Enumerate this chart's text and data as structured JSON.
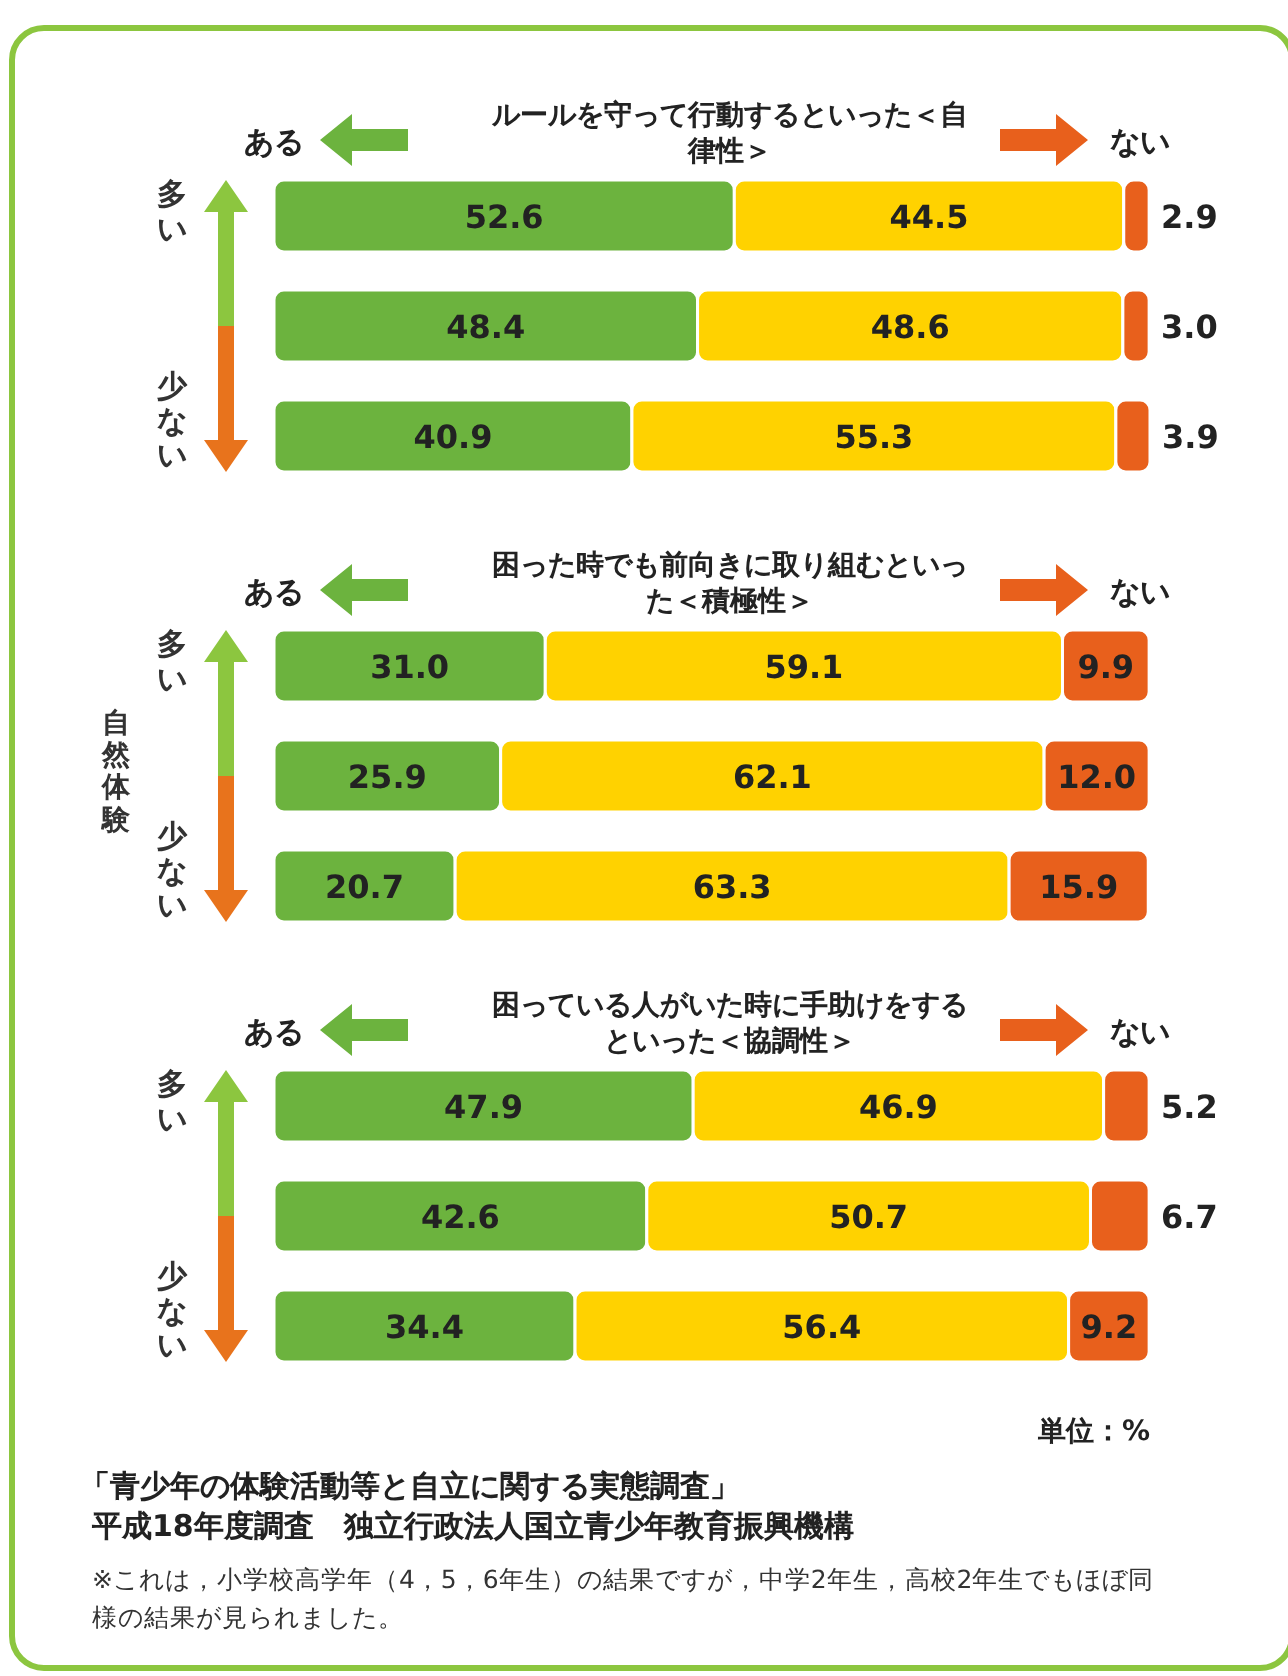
{
  "chart_data": [
    {
      "type": "bar",
      "orientation": "horizontal",
      "stacked": true,
      "title": "ルールを守って行動するといった＜自律性＞",
      "categories": [
        null,
        null,
        null
      ],
      "xlim": [
        0,
        100.1
      ],
      "legend": "top",
      "annotations": [
        "多い",
        "少ない"
      ],
      "series": [
        {
          "name": "ある",
          "color": "#6cb33e",
          "values": [
            52.6,
            48.4,
            40.9
          ],
          "value_labels": [
            "52.6",
            "48.4",
            "40.9"
          ]
        },
        {
          "color": "#ffd200",
          "values": [
            44.5,
            48.6,
            55.3
          ],
          "value_labels": [
            "44.5",
            "48.6",
            "55.3"
          ]
        },
        {
          "name": "ない",
          "color": "#e8601c",
          "values": [
            2.9,
            3.0,
            3.9
          ],
          "value_labels": [
            "2.9",
            "3.0",
            "3.9"
          ]
        }
      ]
    },
    {
      "type": "bar",
      "orientation": "horizontal",
      "stacked": true,
      "title": "困った時でも前向きに取り組むといった＜積極性＞",
      "ylabel": "自然体験",
      "categories": [
        null,
        null,
        null
      ],
      "xlim": [
        0,
        100.1
      ],
      "legend": "top",
      "annotations": [
        "多い",
        "少ない"
      ],
      "series": [
        {
          "name": "ある",
          "color": "#6cb33e",
          "values": [
            31.0,
            25.9,
            20.7
          ],
          "value_labels": [
            "31.0",
            "25.9",
            "20.7"
          ]
        },
        {
          "color": "#ffd200",
          "values": [
            59.1,
            62.1,
            63.3
          ],
          "value_labels": [
            "59.1",
            "62.1",
            "63.3"
          ]
        },
        {
          "name": "ない",
          "color": "#e8601c",
          "values": [
            9.9,
            12.0,
            15.9
          ],
          "value_labels": [
            "9.9",
            "12.0",
            "15.9"
          ]
        }
      ]
    },
    {
      "type": "bar",
      "orientation": "horizontal",
      "stacked": true,
      "title": "困っている人がいた時に手助けをするといった＜協調性＞",
      "categories": [
        null,
        null,
        null
      ],
      "xlim": [
        0,
        100.1
      ],
      "legend": "top",
      "annotations": [
        "多い",
        "少ない",
        "単位：%",
        "「青少年の体験活動等と自立に関する実態調査」",
        "平成18年度調査　独立行政法人国立青少年教育振興機構",
        "※これは，小学校高学年（4，5，6年生）の結果ですが，中学2年生，高校2年生でもほぼ同様の結果が見られました。"
      ],
      "series": [
        {
          "name": "ある",
          "color": "#6cb33e",
          "values": [
            47.9,
            42.6,
            34.4
          ],
          "value_labels": [
            "47.9",
            "42.6",
            "34.4"
          ]
        },
        {
          "color": "#ffd200",
          "values": [
            46.9,
            50.7,
            56.4
          ],
          "value_labels": [
            "46.9",
            "50.7",
            "56.4"
          ]
        },
        {
          "name": "ない",
          "color": "#e8601c",
          "values": [
            5.2,
            6.7,
            9.2
          ],
          "value_labels": [
            "5.2",
            "6.7",
            "9.2"
          ]
        }
      ]
    }
  ]
}
